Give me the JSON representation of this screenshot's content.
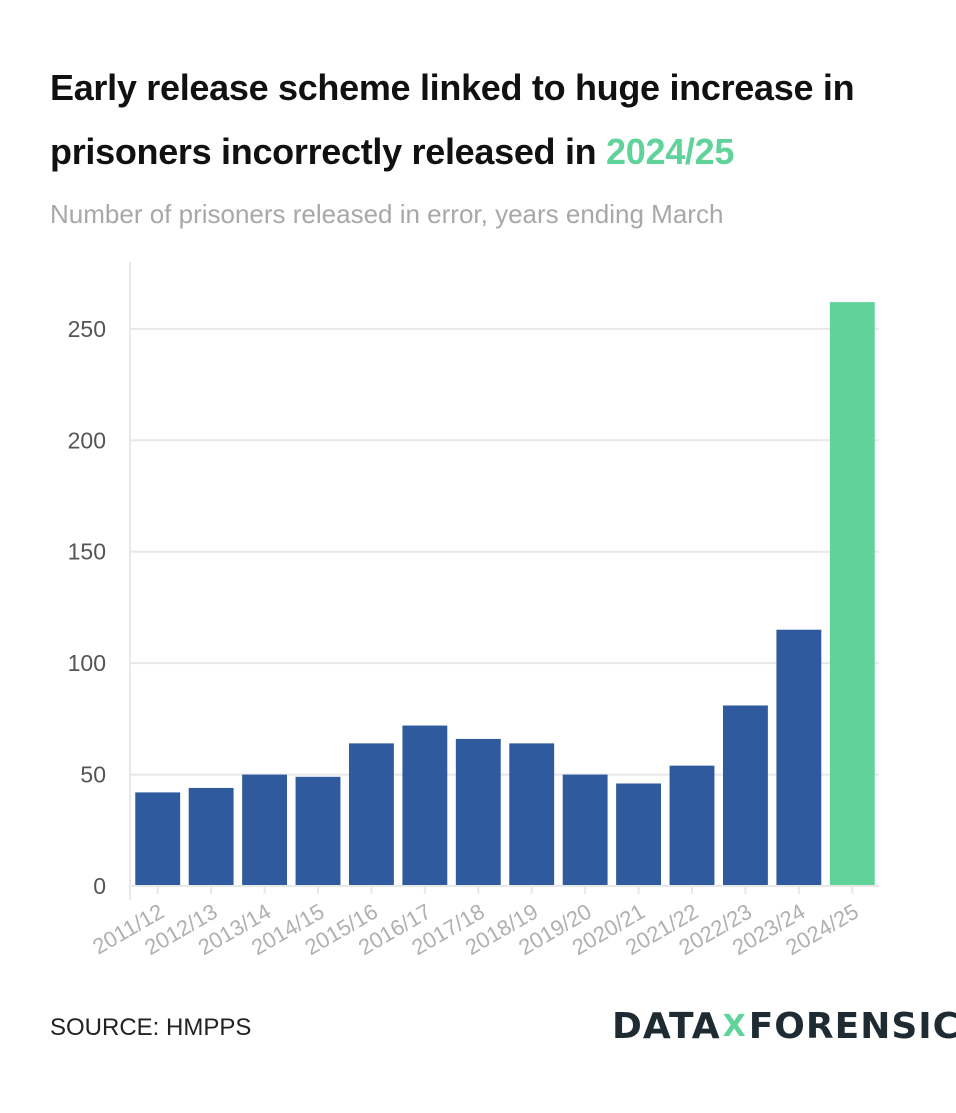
{
  "header": {
    "title_main": "Early release scheme linked to huge increase in prisoners incorrectly released in",
    "title_highlight": "2024/25",
    "subtitle": "Number of prisoners released in error, years ending March"
  },
  "footer": {
    "source": "SOURCE: HMPPS",
    "logo_left": "DATA",
    "logo_mid": "X",
    "logo_right": "FORENSICS"
  },
  "colors": {
    "bar": "#2f5b9e",
    "highlight": "#5fd39a",
    "grid": "#e8e8e8",
    "tick_label": "#555555",
    "x_label": "#b0b0b0"
  },
  "chart_data": {
    "type": "bar",
    "title": "Early release scheme linked to huge increase in prisoners incorrectly released in 2024/25",
    "subtitle": "Number of prisoners released in error, years ending March",
    "xlabel": "",
    "ylabel": "",
    "categories": [
      "2011/12",
      "2012/13",
      "2013/14",
      "2014/15",
      "2015/16",
      "2016/17",
      "2017/18",
      "2018/19",
      "2019/20",
      "2020/21",
      "2021/22",
      "2022/23",
      "2023/24",
      "2024/25"
    ],
    "values": [
      42,
      44,
      50,
      49,
      64,
      72,
      66,
      64,
      50,
      46,
      54,
      81,
      115,
      262
    ],
    "highlight_category": "2024/25",
    "ylim": [
      0,
      280
    ],
    "yticks": [
      0,
      50,
      100,
      150,
      200,
      250
    ],
    "grid": true,
    "legend": "none"
  }
}
